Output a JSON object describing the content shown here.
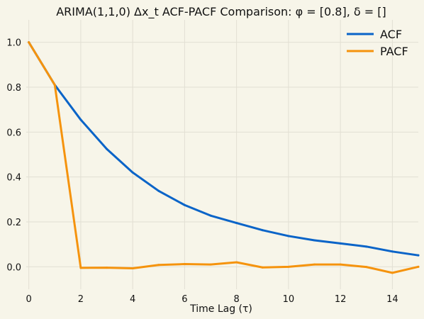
{
  "chart_data": {
    "type": "line",
    "title": "ARIMA(1,1,0) Δx_t ACF-PACF Comparison: φ = [0.8], δ = []",
    "xlabel": "Time Lag (τ)",
    "ylabel": "",
    "xlim": [
      -0.1,
      15
    ],
    "ylim": [
      -0.1,
      1.1
    ],
    "xticks": [
      0,
      2,
      4,
      6,
      8,
      10,
      12,
      14
    ],
    "yticks": [
      0.0,
      0.2,
      0.4,
      0.6,
      0.8,
      1.0
    ],
    "grid": true,
    "legend_position": "top-right",
    "x": [
      0,
      1,
      2,
      3,
      4,
      5,
      6,
      7,
      8,
      9,
      10,
      11,
      12,
      13,
      14,
      15
    ],
    "series": [
      {
        "name": "ACF",
        "color": "#0a64c8",
        "values": [
          1.0,
          0.81,
          0.655,
          0.525,
          0.42,
          0.338,
          0.275,
          0.228,
          0.195,
          0.163,
          0.137,
          0.118,
          0.104,
          0.09,
          0.068,
          0.051
        ]
      },
      {
        "name": "PACF",
        "color": "#f5930d",
        "values": [
          1.0,
          0.81,
          -0.005,
          -0.004,
          -0.007,
          0.008,
          0.012,
          0.01,
          0.02,
          -0.003,
          0.0,
          0.01,
          0.01,
          -0.001,
          -0.027,
          0.0
        ]
      }
    ]
  }
}
